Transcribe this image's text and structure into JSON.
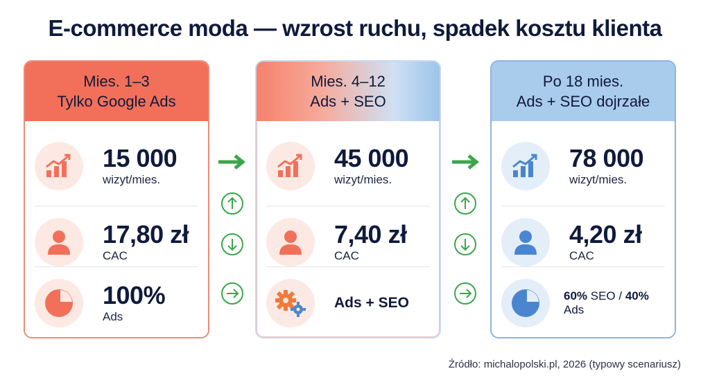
{
  "title": "E-commerce moda — wzrost ruchu, spadek kosztu klienta",
  "source": "Źródło: michalopolski.pl, 2026 (typowy scenariusz)",
  "stages": [
    {
      "header_line1": "Mies. 1–3",
      "header_line2": "Tylko Google Ads",
      "visits_value": "15 000",
      "visits_unit": "wizyt/mies.",
      "cac_value": "17,80 zł",
      "cac_label": "CAC",
      "mix_value": "100%",
      "mix_label": "Ads",
      "accent": "#f2705a"
    },
    {
      "header_line1": "Mies. 4–12",
      "header_line2": "Ads + SEO",
      "visits_value": "45 000",
      "visits_unit": "wizyt/mies.",
      "cac_value": "7,40 zł",
      "cac_label": "CAC",
      "mix_label": "Ads + SEO",
      "accent": "#f2705a"
    },
    {
      "header_line1": "Po 18 mies.",
      "header_line2": "Ads + SEO dojrzałe",
      "visits_value": "78 000",
      "visits_unit": "wizyt/mies.",
      "cac_value": "4,20 zł",
      "cac_label": "CAC",
      "mix_seo_pct": "60%",
      "mix_seo_label": " SEO / ",
      "mix_ads_pct": "40%",
      "mix_ads_label": " Ads",
      "accent": "#4a86cf"
    }
  ],
  "colors": {
    "green": "#3aa64a",
    "red": "#f2705a",
    "blue": "#4a86cf",
    "orange": "#f07a3a"
  },
  "icons": {
    "visits": "bar-chart-trend-icon",
    "cac": "user-icon",
    "mix": "pie-chart-icon",
    "mix_stage2": "gears-icon",
    "transition": "arrow-right-icon",
    "up": "arrow-up-circle-icon",
    "down": "arrow-down-circle-icon",
    "right": "arrow-right-circle-icon"
  }
}
